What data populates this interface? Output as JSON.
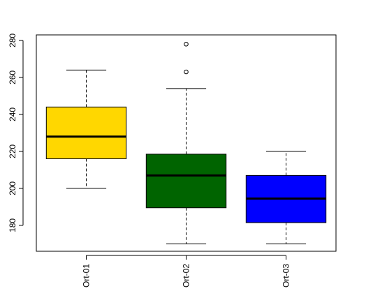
{
  "chart_data": {
    "type": "boxplot",
    "categories": [
      "Ort-01",
      "Ort-02",
      "Ort-03"
    ],
    "boxes": [
      {
        "whisker_low": 200,
        "q1": 216,
        "median": 228,
        "q3": 244,
        "whisker_high": 264,
        "outliers": [],
        "color": "#FFD700"
      },
      {
        "whisker_low": 170,
        "q1": 189.5,
        "median": 207,
        "q3": 218.5,
        "whisker_high": 254,
        "outliers": [
          263,
          278
        ],
        "color": "#006400"
      },
      {
        "whisker_low": 170,
        "q1": 181.5,
        "median": 194.5,
        "q3": 207,
        "whisker_high": 220,
        "outliers": [],
        "color": "#0000FF"
      }
    ],
    "y_ticks": [
      180,
      200,
      220,
      240,
      260,
      280
    ],
    "ylim": [
      166,
      283
    ],
    "title": "",
    "xlabel": "",
    "ylabel": "",
    "grid": false,
    "legend": "none"
  }
}
